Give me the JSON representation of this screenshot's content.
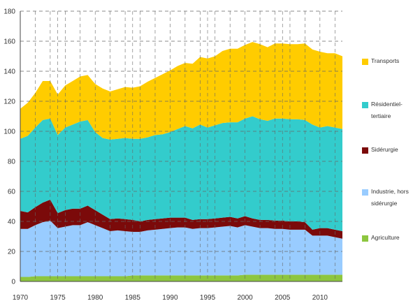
{
  "chart_data": {
    "type": "area",
    "stacked": true,
    "title": "",
    "xlabel": "",
    "ylabel": "",
    "xlim": [
      1970,
      2013
    ],
    "ylim": [
      0,
      180
    ],
    "y_ticks": [
      0,
      20,
      40,
      60,
      80,
      100,
      120,
      140,
      160,
      180
    ],
    "x_ticks": [
      1970,
      1975,
      1980,
      1985,
      1990,
      1995,
      2000,
      2005,
      2010
    ],
    "x_tick_labels": [
      "1970",
      "1975",
      "1980",
      "1985",
      "1990",
      "1995",
      "2000",
      "2005",
      "2010"
    ],
    "legend_position": "right",
    "x": [
      1970,
      1971,
      1972,
      1973,
      1974,
      1975,
      1976,
      1977,
      1978,
      1979,
      1980,
      1981,
      1982,
      1983,
      1984,
      1985,
      1986,
      1987,
      1988,
      1989,
      1990,
      1991,
      1992,
      1993,
      1994,
      1995,
      1996,
      1997,
      1998,
      1999,
      2000,
      2001,
      2002,
      2003,
      2004,
      2005,
      2006,
      2007,
      2008,
      2009,
      2010,
      2011,
      2012,
      2013
    ],
    "series": [
      {
        "name": "Agriculture",
        "color": "#8dc63f",
        "values": [
          3,
          3,
          3.5,
          3.5,
          3.5,
          3.5,
          3.5,
          3.5,
          3.5,
          3.5,
          3.5,
          3.5,
          3.5,
          3.5,
          3.5,
          4,
          4,
          4,
          4,
          4,
          4,
          4,
          4,
          4,
          4,
          4,
          4,
          4,
          4,
          4,
          4.5,
          4.5,
          4.5,
          4.5,
          4.5,
          4.5,
          4.5,
          4.5,
          4.5,
          4.5,
          4.5,
          4.5,
          4.5,
          4.5
        ]
      },
      {
        "name": "Industrie, hors sidérurgie",
        "color": "#99ccff",
        "values": [
          32,
          32,
          34,
          36,
          37,
          32,
          33,
          34,
          34,
          36,
          34,
          32,
          30,
          30.5,
          30,
          29,
          29,
          30,
          30.5,
          31,
          31.5,
          32,
          32,
          31,
          31.5,
          31.5,
          32,
          32.5,
          33,
          32,
          33,
          32,
          31,
          31,
          30.5,
          30.5,
          30,
          30,
          30,
          26,
          26,
          26,
          25,
          24
        ]
      },
      {
        "name": "Sidérurgie",
        "color": "#7b0a0a",
        "values": [
          12,
          11,
          12,
          13,
          14,
          10,
          11,
          11,
          11,
          11,
          10,
          9,
          8,
          8,
          8,
          8,
          7,
          7,
          7,
          7,
          7,
          6.5,
          6.5,
          6,
          6,
          6,
          6,
          6,
          6,
          6,
          6,
          5.5,
          5.5,
          5.5,
          5.5,
          5.5,
          5.5,
          5.5,
          5,
          4,
          5,
          5,
          5,
          5
        ]
      },
      {
        "name": "Résidentiel-tertiaire",
        "color": "#33cccc",
        "values": [
          48,
          51,
          53,
          55,
          54,
          52,
          55,
          56,
          58,
          57,
          52,
          51,
          53,
          53,
          54,
          54,
          55,
          55,
          56,
          56,
          57,
          59,
          61,
          61,
          63,
          61,
          62,
          63,
          63,
          64,
          65,
          68,
          67,
          66,
          68,
          68,
          68,
          68,
          68,
          70,
          67,
          68,
          68,
          68
        ]
      },
      {
        "name": "Transports",
        "color": "#ffcc00",
        "values": [
          20,
          22,
          23,
          26,
          25,
          27,
          28,
          29,
          30,
          30,
          32,
          33,
          32,
          33,
          34,
          34,
          35,
          37,
          38,
          40,
          41,
          42,
          42,
          43,
          45,
          46,
          46,
          48,
          49,
          49,
          49,
          49.5,
          50,
          49,
          50,
          50,
          50,
          50,
          51,
          50,
          50.5,
          48.5,
          49.5,
          48.5
        ]
      }
    ],
    "legend_order": [
      "Transports",
      "Résidentiel-tertiaire",
      "Sidérurgie",
      "Industrie, hors sidérurgie",
      "Agriculture"
    ],
    "legend": [
      {
        "label": "Transports",
        "color": "#ffcc00"
      },
      {
        "label": "Résidentiel-\ntertiaire",
        "color": "#33cccc"
      },
      {
        "label": "Sidérurgie",
        "color": "#7b0a0a"
      },
      {
        "label": "Industrie, hors\nsidérurgie",
        "color": "#99ccff"
      },
      {
        "label": "Agriculture",
        "color": "#8dc63f"
      }
    ]
  }
}
